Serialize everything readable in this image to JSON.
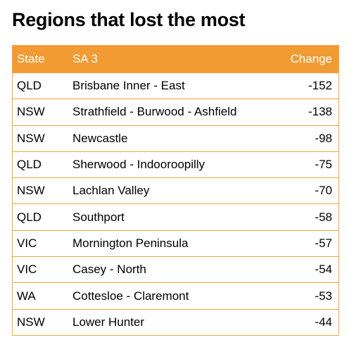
{
  "title": "Regions that lost the most",
  "colors": {
    "header_bg": "#f29b32",
    "border": "#f6a33c",
    "header_text": "#ffffff",
    "body_text": "#000000"
  },
  "chart_data": {
    "type": "table",
    "title": "Regions that lost the most",
    "columns": [
      "State",
      "SA 3",
      "Change"
    ],
    "rows": [
      {
        "state": "QLD",
        "sa3": "Brisbane Inner - East",
        "change": "-152"
      },
      {
        "state": "NSW",
        "sa3": "Strathfield - Burwood - Ashfield",
        "change": "-138"
      },
      {
        "state": "NSW",
        "sa3": "Newcastle",
        "change": "-98"
      },
      {
        "state": "QLD",
        "sa3": "Sherwood - Indooroopilly",
        "change": "-75"
      },
      {
        "state": "NSW",
        "sa3": "Lachlan Valley",
        "change": "-70"
      },
      {
        "state": "QLD",
        "sa3": "Southport",
        "change": "-58"
      },
      {
        "state": "VIC",
        "sa3": "Mornington Peninsula",
        "change": "-57"
      },
      {
        "state": "VIC",
        "sa3": "Casey - North",
        "change": "-54"
      },
      {
        "state": "WA",
        "sa3": "Cottesloe - Claremont",
        "change": "-53"
      },
      {
        "state": "NSW",
        "sa3": "Lower Hunter",
        "change": "-44"
      }
    ]
  }
}
